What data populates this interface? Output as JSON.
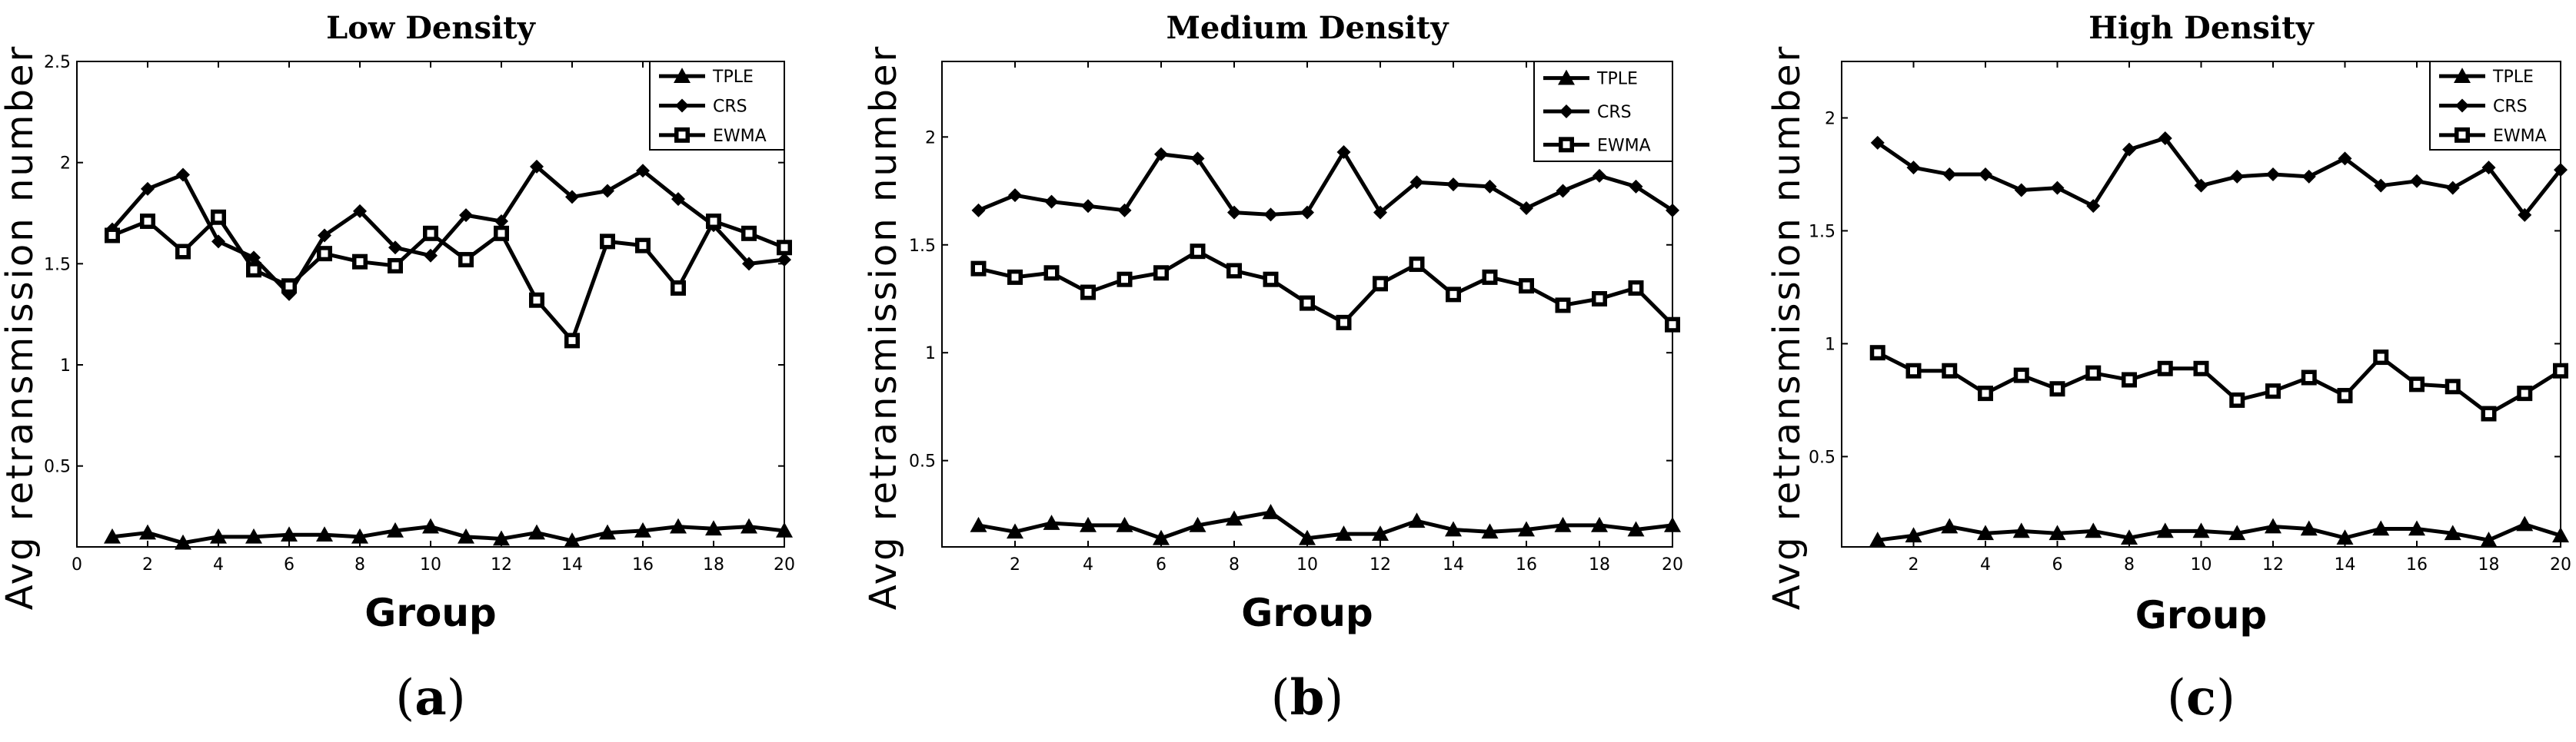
{
  "chart_data": [
    {
      "type": "line",
      "title": "Low Density",
      "caption_letter": "a",
      "xlabel": "Group",
      "ylabel": "Avg retransmission number",
      "xlim": [
        0,
        20
      ],
      "ylim": [
        0.1,
        2.5
      ],
      "xticks": [
        0,
        2,
        4,
        6,
        8,
        10,
        12,
        14,
        16,
        18,
        20
      ],
      "yticks": [
        0.5,
        1,
        1.5,
        2,
        2.5
      ],
      "x": [
        1,
        2,
        3,
        4,
        5,
        6,
        7,
        8,
        9,
        10,
        11,
        12,
        13,
        14,
        15,
        16,
        17,
        18,
        19,
        20
      ],
      "series": [
        {
          "name": "TPLE",
          "marker": "triangle",
          "values": [
            0.15,
            0.17,
            0.12,
            0.15,
            0.15,
            0.16,
            0.16,
            0.15,
            0.18,
            0.2,
            0.15,
            0.14,
            0.17,
            0.13,
            0.17,
            0.18,
            0.2,
            0.19,
            0.2,
            0.18
          ]
        },
        {
          "name": "CRS",
          "marker": "diamond",
          "values": [
            1.67,
            1.87,
            1.94,
            1.61,
            1.53,
            1.35,
            1.64,
            1.76,
            1.58,
            1.54,
            1.74,
            1.71,
            1.98,
            1.83,
            1.86,
            1.96,
            1.82,
            1.69,
            1.5,
            1.52
          ]
        },
        {
          "name": "EWMA",
          "marker": "square",
          "values": [
            1.64,
            1.71,
            1.56,
            1.73,
            1.47,
            1.39,
            1.55,
            1.51,
            1.49,
            1.65,
            1.52,
            1.65,
            1.32,
            1.12,
            1.61,
            1.59,
            1.38,
            1.71,
            1.65,
            1.58
          ]
        }
      ]
    },
    {
      "type": "line",
      "title": "Medium Density",
      "caption_letter": "b",
      "xlabel": "Group",
      "ylabel": "Avg retransmission number",
      "xlim": [
        0,
        20
      ],
      "ylim": [
        0.1,
        2.35
      ],
      "xticks": [
        2,
        4,
        6,
        8,
        10,
        12,
        14,
        16,
        18,
        20
      ],
      "yticks": [
        0.5,
        1,
        1.5,
        2
      ],
      "x": [
        1,
        2,
        3,
        4,
        5,
        6,
        7,
        8,
        9,
        10,
        11,
        12,
        13,
        14,
        15,
        16,
        17,
        18,
        19,
        20
      ],
      "series": [
        {
          "name": "TPLE",
          "marker": "triangle",
          "values": [
            0.2,
            0.17,
            0.21,
            0.2,
            0.2,
            0.14,
            0.2,
            0.23,
            0.26,
            0.14,
            0.16,
            0.16,
            0.22,
            0.18,
            0.17,
            0.18,
            0.2,
            0.2,
            0.18,
            0.2
          ]
        },
        {
          "name": "CRS",
          "marker": "diamond",
          "values": [
            1.66,
            1.73,
            1.7,
            1.68,
            1.66,
            1.92,
            1.9,
            1.65,
            1.64,
            1.65,
            1.93,
            1.65,
            1.79,
            1.78,
            1.77,
            1.67,
            1.75,
            1.82,
            1.77,
            1.66
          ]
        },
        {
          "name": "EWMA",
          "marker": "square",
          "values": [
            1.39,
            1.35,
            1.37,
            1.28,
            1.34,
            1.37,
            1.47,
            1.38,
            1.34,
            1.23,
            1.14,
            1.32,
            1.41,
            1.27,
            1.35,
            1.31,
            1.22,
            1.25,
            1.3,
            1.13
          ]
        }
      ]
    },
    {
      "type": "line",
      "title": "High Density",
      "caption_letter": "c",
      "xlabel": "Group",
      "ylabel": "Avg retransmission number",
      "xlim": [
        0,
        20
      ],
      "ylim": [
        0.1,
        2.25
      ],
      "xticks": [
        2,
        4,
        6,
        8,
        10,
        12,
        14,
        16,
        18,
        20
      ],
      "yticks": [
        0.5,
        1,
        1.5,
        2
      ],
      "x": [
        1,
        2,
        3,
        4,
        5,
        6,
        7,
        8,
        9,
        10,
        11,
        12,
        13,
        14,
        15,
        16,
        17,
        18,
        19,
        20
      ],
      "series": [
        {
          "name": "TPLE",
          "marker": "triangle",
          "values": [
            0.13,
            0.15,
            0.19,
            0.16,
            0.17,
            0.16,
            0.17,
            0.14,
            0.17,
            0.17,
            0.16,
            0.19,
            0.18,
            0.14,
            0.18,
            0.18,
            0.16,
            0.13,
            0.2,
            0.15
          ]
        },
        {
          "name": "CRS",
          "marker": "diamond",
          "values": [
            1.89,
            1.78,
            1.75,
            1.75,
            1.68,
            1.69,
            1.61,
            1.86,
            1.91,
            1.7,
            1.74,
            1.75,
            1.74,
            1.82,
            1.7,
            1.72,
            1.69,
            1.78,
            1.57,
            1.77
          ]
        },
        {
          "name": "EWMA",
          "marker": "square",
          "values": [
            0.96,
            0.88,
            0.88,
            0.78,
            0.86,
            0.8,
            0.87,
            0.84,
            0.89,
            0.89,
            0.75,
            0.79,
            0.85,
            0.77,
            0.94,
            0.82,
            0.81,
            0.69,
            0.78,
            0.88
          ]
        }
      ]
    }
  ]
}
